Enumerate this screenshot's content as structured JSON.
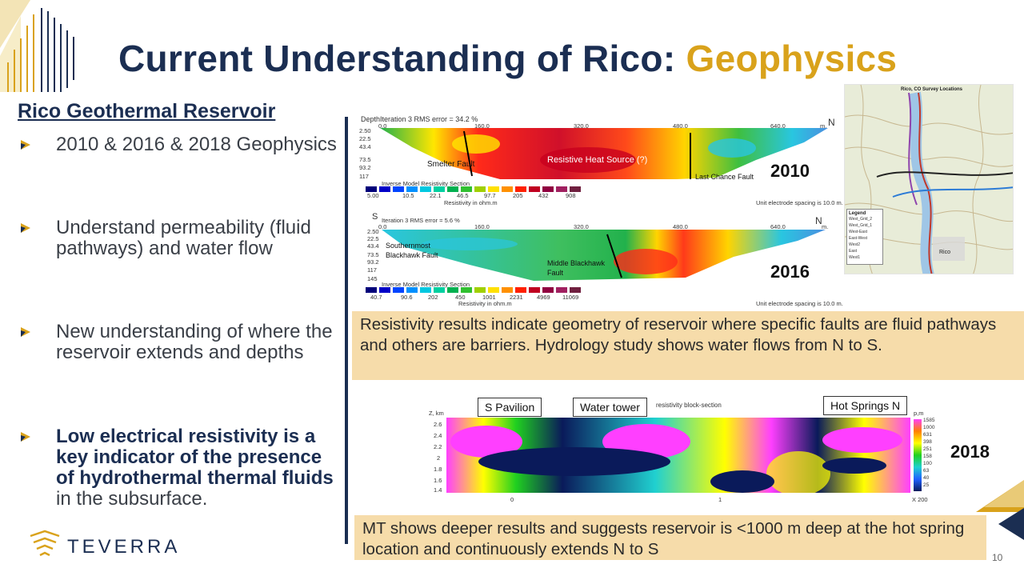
{
  "title": {
    "main": "Current Understanding of Rico:",
    "accent": "Geophysics"
  },
  "section_heading": "Rico Geothermal Reservoir",
  "bullets": [
    {
      "text": "2010 & 2016 & 2018 Geophysics"
    },
    {
      "text": "Understand permeability (fluid pathways) and water flow"
    },
    {
      "text": "New understanding of where the reservoir extends and depths"
    },
    {
      "bold": "Low electrical resistivity is a key indicator of the presence of hydrothermal thermal fluids",
      "rest": " in the subsurface."
    }
  ],
  "section_2010": {
    "year": "2010",
    "depth_label": "Depth",
    "iteration": "Iteration 3 RMS error = 34.2 %",
    "x_ticks": [
      "0.0",
      "160.0",
      "320.0",
      "480.0",
      "640.0"
    ],
    "unit_m": "m.",
    "depths": [
      "2.50",
      "22.5",
      "43.4",
      "73.5",
      "93.2",
      "117"
    ],
    "labels": {
      "smelter": "Smelter Fault",
      "heat": "Resistive Heat Source (?)",
      "last_chance": "Last Chance Fault"
    },
    "legend_title": "Inverse Model Resistivity Section",
    "legend_values": [
      "5.00",
      "10.5",
      "22.1",
      "46.5",
      "97.7",
      "205",
      "432",
      "908"
    ],
    "legend_unit": "Resistivity in ohm.m",
    "spacing": "Unit electrode spacing is 10.0 m.",
    "north": "N"
  },
  "section_2016": {
    "year": "2016",
    "south": "S",
    "north": "N",
    "iteration": "Iteration 3 RMS error = 5.6 %",
    "x_ticks": [
      "0.0",
      "160.0",
      "320.0",
      "480.0",
      "640.0"
    ],
    "unit_m": "m.",
    "depths": [
      "2.50",
      "22.5",
      "43.4",
      "73.5",
      "93.2",
      "117",
      "145"
    ],
    "labels": {
      "southernmost_1": "Southernmost",
      "southernmost_2": "Blackhawk Fault",
      "middle_1": "Middle Blackhawk",
      "middle_2": "Fault"
    },
    "legend_title": "Inverse Model Resistivity Section",
    "legend_values": [
      "40.7",
      "90.6",
      "202",
      "450",
      "1001",
      "2231",
      "4969",
      "11069"
    ],
    "legend_unit": "Resistivity in ohm.m",
    "spacing": "Unit electrode spacing is 10.0 m."
  },
  "map": {
    "title": "Rico, CO Survey Locations",
    "legend_title": "Legend",
    "legend_items": [
      "West_Grid_2",
      "West_Grid_1",
      "West-East",
      "East-West",
      "West2",
      "East",
      "West1"
    ],
    "town": "Rico"
  },
  "note_1": "Resistivity results indicate geometry of reservoir where specific faults are fluid pathways and others are barriers. Hydrology study shows water flows from N to S.",
  "section_2018": {
    "year": "2018",
    "callouts": {
      "pavilion": "S Pavilion",
      "tower": "Water tower",
      "springs": "Hot Springs  N"
    },
    "header": "resistivity block-section",
    "axis_label": "Z, km",
    "y_ticks": [
      "2.6",
      "2.4",
      "2.2",
      "2",
      "1.8",
      "1.6",
      "1.4"
    ],
    "x_ticks": [
      "0",
      "1"
    ],
    "x_scale": "X 200",
    "colorbar_unit": "p,m",
    "colorbar_values": [
      "1585",
      "1000",
      "631",
      "398",
      "251",
      "158",
      "100",
      "63",
      "40",
      "25"
    ]
  },
  "note_2": "MT shows deeper results and suggests reservoir is <1000 m deep at the hot spring location and continuously extends N to S",
  "logo": "TEVERRA",
  "page_number": "10",
  "colors": {
    "navy": "#1b2e52",
    "gold": "#d9a21b",
    "note_bg": "#f6dcaa"
  }
}
